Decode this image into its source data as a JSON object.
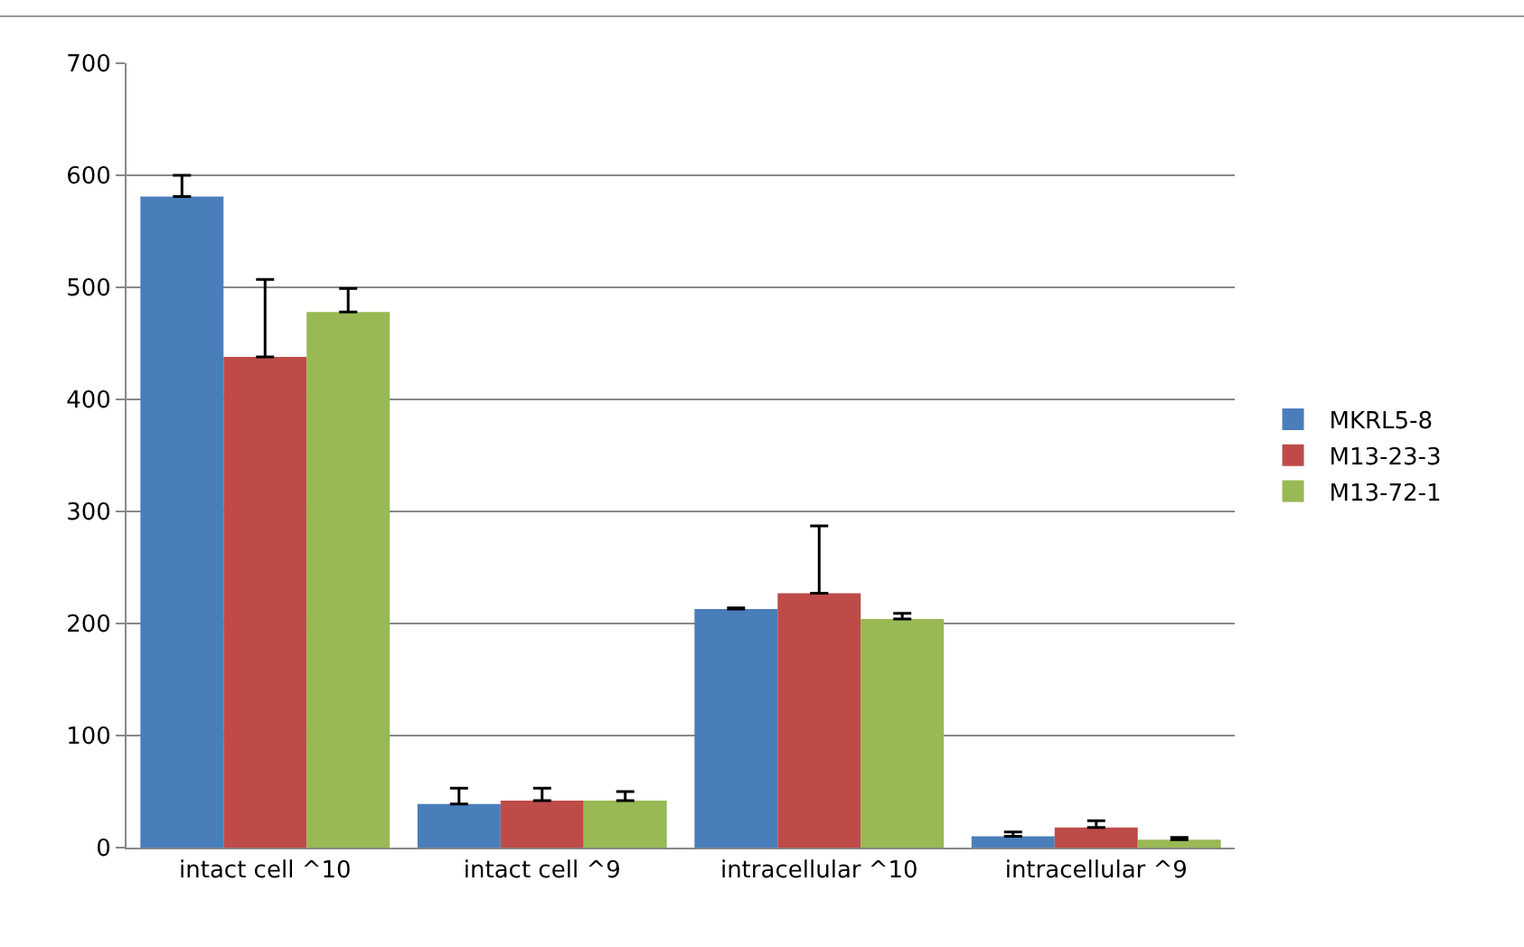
{
  "chart_data": {
    "type": "bar",
    "categories": [
      "intact cell ^10",
      "intact cell ^9",
      "intracellular ^10",
      "intracellular ^9"
    ],
    "series": [
      {
        "name": "MKRL5-8",
        "color": "#4a7ebb",
        "values": [
          581,
          39,
          213,
          10
        ],
        "errors": [
          [
            581,
            600
          ],
          [
            39,
            53
          ],
          [
            213,
            214
          ],
          [
            10,
            14
          ]
        ]
      },
      {
        "name": "M13-23-3",
        "color": "#be4b48",
        "values": [
          438,
          42,
          227,
          18
        ],
        "errors": [
          [
            438,
            507
          ],
          [
            42,
            53
          ],
          [
            227,
            287
          ],
          [
            18,
            24
          ]
        ]
      },
      {
        "name": "M13-72-1",
        "color": "#98b954",
        "values": [
          478,
          42,
          204,
          7
        ],
        "errors": [
          [
            478,
            499
          ],
          [
            42,
            50
          ],
          [
            204,
            209
          ],
          [
            7,
            9
          ]
        ]
      }
    ],
    "ylim": [
      0,
      700
    ],
    "yticks": [
      0,
      100,
      200,
      300,
      400,
      500,
      600,
      700
    ],
    "grid": "y",
    "legend": "right"
  }
}
